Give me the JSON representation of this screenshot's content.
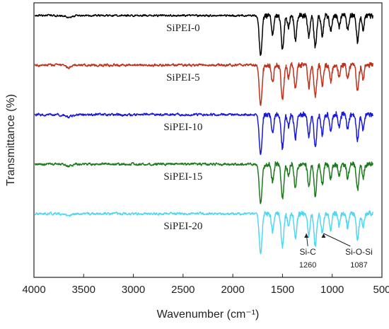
{
  "chart_data": {
    "type": "line",
    "title": "",
    "xlabel": "Wavenumber (cm⁻¹)",
    "ylabel": "Transmittance (%)",
    "xlim": [
      4000,
      500
    ],
    "x_reversed": true,
    "y_ticks_shown": false,
    "x_ticks": [
      "4000",
      "3500",
      "3000",
      "2500",
      "2000",
      "1500",
      "1000",
      "500"
    ],
    "series": [
      {
        "name": "SiPEI-0",
        "color": "#000000",
        "baseline": 0.5,
        "label": "SiPEI-0"
      },
      {
        "name": "SiPEI-5",
        "color": "#c0301a",
        "baseline": 1.5,
        "label": "SiPEI-5"
      },
      {
        "name": "SiPEI-10",
        "color": "#1a1adb",
        "baseline": 2.5,
        "label": "SiPEI-10"
      },
      {
        "name": "SiPEI-15",
        "color": "#1e7a1e",
        "baseline": 3.5,
        "label": "SiPEI-15"
      },
      {
        "name": "SiPEI-20",
        "color": "#4fd8f0",
        "baseline": 4.5,
        "label": "SiPEI-20"
      }
    ],
    "peaks": [
      {
        "x": 1720,
        "depth": 1.0
      },
      {
        "x": 1600,
        "depth": 0.45
      },
      {
        "x": 1500,
        "depth": 0.85
      },
      {
        "x": 1440,
        "depth": 0.3
      },
      {
        "x": 1370,
        "depth": 0.6
      },
      {
        "x": 1235,
        "depth": 0.55
      },
      {
        "x": 1170,
        "depth": 0.8
      },
      {
        "x": 1100,
        "depth": 0.5
      },
      {
        "x": 1015,
        "depth": 0.4
      },
      {
        "x": 930,
        "depth": 0.3
      },
      {
        "x": 845,
        "depth": 0.35
      },
      {
        "x": 745,
        "depth": 0.65
      },
      {
        "x": 690,
        "depth": 0.35
      }
    ],
    "annotations": [
      {
        "label": "Si-C",
        "value": "1260",
        "x": 1260
      },
      {
        "label": "Si-O-Si",
        "value": "1087",
        "x": 1087
      }
    ]
  }
}
